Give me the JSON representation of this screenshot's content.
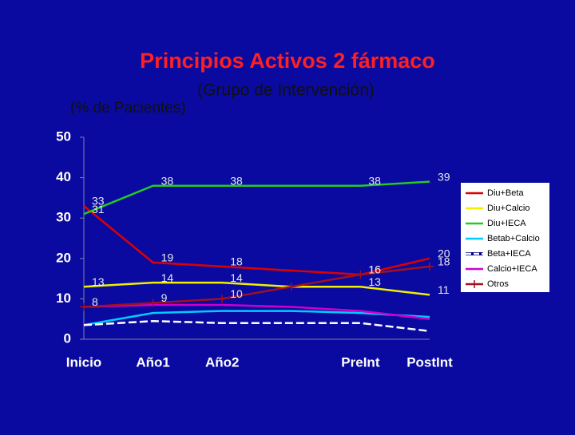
{
  "chart_data": {
    "type": "line",
    "title": "Principios Activos 2 fármaco",
    "subtitle": "(Grupo de Intervención)",
    "y_label": "(% de Pacientes)",
    "categories": [
      "Inicio",
      "Año1",
      "Año2",
      null,
      "PreInt",
      "PostInt"
    ],
    "ylim": [
      0,
      50
    ],
    "yticks": [
      0,
      10,
      20,
      30,
      40,
      50
    ],
    "legend": "right",
    "series": [
      {
        "name": "Diu+Beta",
        "color": "#dd0000",
        "values": [
          33,
          19,
          18,
          17,
          16,
          20
        ],
        "value_labels": [
          "33",
          "19",
          "18",
          null,
          "16",
          "20"
        ]
      },
      {
        "name": "Diu+Calcio",
        "color": "#f0f000",
        "values": [
          13,
          14,
          14,
          13,
          13,
          11
        ],
        "value_labels": [
          "13",
          "14",
          "14",
          null,
          "13",
          "11"
        ]
      },
      {
        "name": "Diu+IECA",
        "color": "#22cc22",
        "values": [
          31,
          38,
          38,
          38,
          38,
          39
        ],
        "value_labels": [
          "31",
          "38",
          "38",
          null,
          "38",
          "39"
        ]
      },
      {
        "name": "Betab+Calcio",
        "color": "#00ccff",
        "values": [
          3.5,
          6.5,
          7,
          7,
          6.5,
          5.5
        ]
      },
      {
        "name": "Beta+IECA",
        "color": "#ffffff",
        "dashed": true,
        "values": [
          3.5,
          4.5,
          4,
          4,
          4,
          2
        ]
      },
      {
        "name": "Calcio+IECA",
        "color": "#cc00cc",
        "values": [
          8,
          8.5,
          8.5,
          8,
          7,
          5
        ]
      },
      {
        "name": "Otros",
        "color": "#a01020",
        "marker": "+",
        "values": [
          8,
          9,
          10,
          13,
          16,
          18
        ],
        "value_labels": [
          "8",
          "9",
          "10",
          null,
          "16",
          "18"
        ]
      }
    ]
  }
}
